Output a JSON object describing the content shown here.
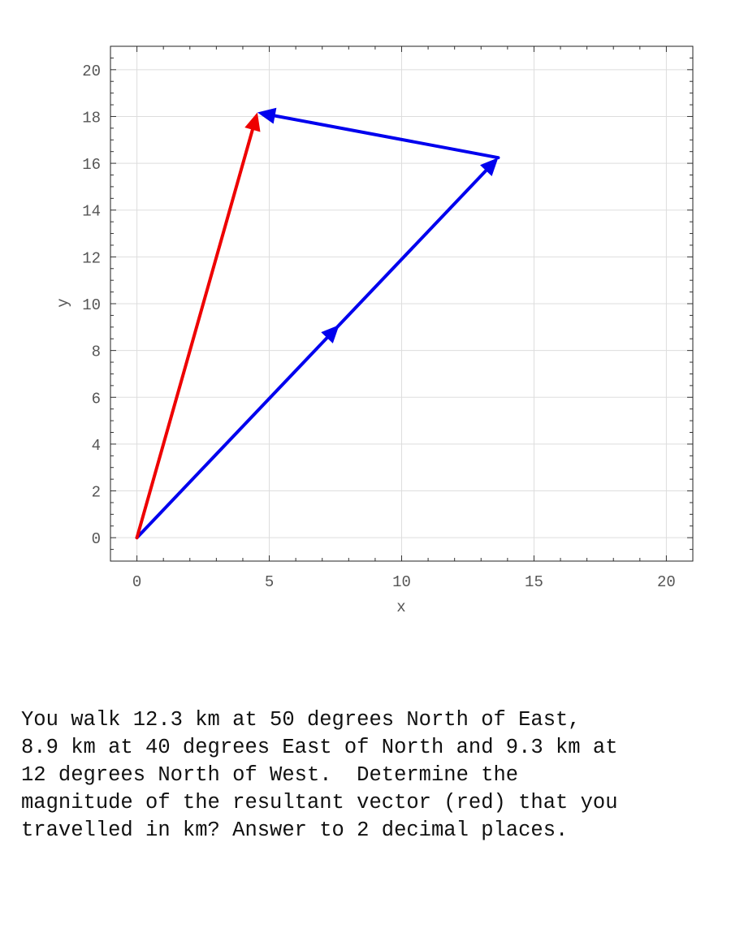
{
  "chart_data": {
    "type": "line",
    "xlabel": "x",
    "ylabel": "y",
    "xlim": [
      -1,
      21
    ],
    "ylim": [
      -1,
      21
    ],
    "x_ticks": [
      0,
      5,
      10,
      15,
      20
    ],
    "y_ticks": [
      0,
      2,
      4,
      6,
      8,
      10,
      12,
      14,
      16,
      18,
      20
    ],
    "grid": true,
    "vectors": [
      {
        "from": [
          0,
          0
        ],
        "to": [
          13.65,
          16.24
        ],
        "mid_arrow": true,
        "color": "#0000ee"
      },
      {
        "from": [
          13.65,
          16.24
        ],
        "to": [
          4.55,
          18.17
        ],
        "mid_arrow": false,
        "color": "#0000ee"
      },
      {
        "from": [
          0,
          0
        ],
        "to": [
          4.55,
          18.17
        ],
        "mid_arrow": false,
        "color": "#ee0000"
      }
    ]
  },
  "question": {
    "lines": [
      "You walk 12.3 km at 50 degrees North of East,",
      "8.9 km at 40 degrees East of North and 9.3 km at",
      "12 degrees North of West.  Determine the",
      "magnitude of the resultant vector (red) that you",
      "travelled in km? Answer to 2 decimal places."
    ]
  }
}
